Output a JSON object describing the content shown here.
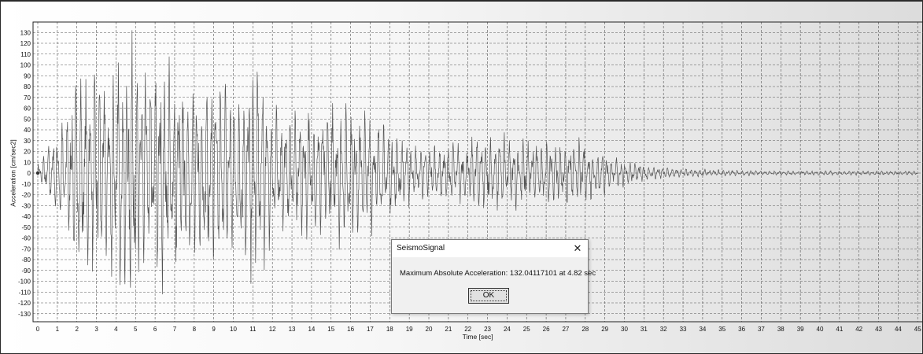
{
  "dialog": {
    "title": "SeismoSignal",
    "close_icon": "close-icon",
    "message": "Maximum Absolute Acceleration: 132.04117101 at 4.82 sec",
    "ok_label": "OK"
  },
  "chart_data": {
    "type": "line",
    "title": "",
    "xlabel": "Time [sec]",
    "ylabel": "Acceleration [cm/sec2]",
    "xlim": [
      0,
      45
    ],
    "ylim": [
      -135,
      135
    ],
    "x_ticks": [
      0,
      1,
      2,
      3,
      4,
      5,
      6,
      7,
      8,
      9,
      10,
      11,
      12,
      13,
      14,
      15,
      16,
      17,
      18,
      19,
      20,
      21,
      22,
      23,
      24,
      25,
      26,
      27,
      28,
      29,
      30,
      31,
      32,
      33,
      34,
      35,
      36,
      37,
      38,
      39,
      40,
      41,
      42,
      43,
      44,
      45
    ],
    "y_ticks": [
      130,
      120,
      110,
      100,
      90,
      80,
      70,
      60,
      50,
      40,
      30,
      20,
      10,
      0,
      -10,
      -20,
      -30,
      -40,
      -50,
      -60,
      -70,
      -80,
      -90,
      -100,
      -110,
      -120,
      -130
    ],
    "grid": true,
    "line_color": "#555555",
    "envelope": {
      "time": [
        0,
        0.4,
        1,
        2,
        3,
        4,
        4.82,
        5.5,
        6.5,
        7.5,
        8.5,
        9.5,
        10.5,
        11.2,
        12,
        13,
        14,
        15,
        16,
        17,
        17.8,
        18.5,
        19.5,
        21,
        22,
        23,
        24,
        25,
        26,
        27.5,
        28.5,
        29.5,
        30.5,
        31.5,
        33,
        35,
        38,
        41,
        45
      ],
      "amplitude": [
        10,
        20,
        40,
        90,
        95,
        100,
        132,
        105,
        100,
        85,
        85,
        80,
        90,
        118,
        60,
        50,
        65,
        62,
        62,
        55,
        45,
        35,
        25,
        28,
        30,
        38,
        35,
        30,
        28,
        30,
        25,
        15,
        10,
        6,
        4,
        3,
        2,
        2,
        2
      ]
    }
  }
}
